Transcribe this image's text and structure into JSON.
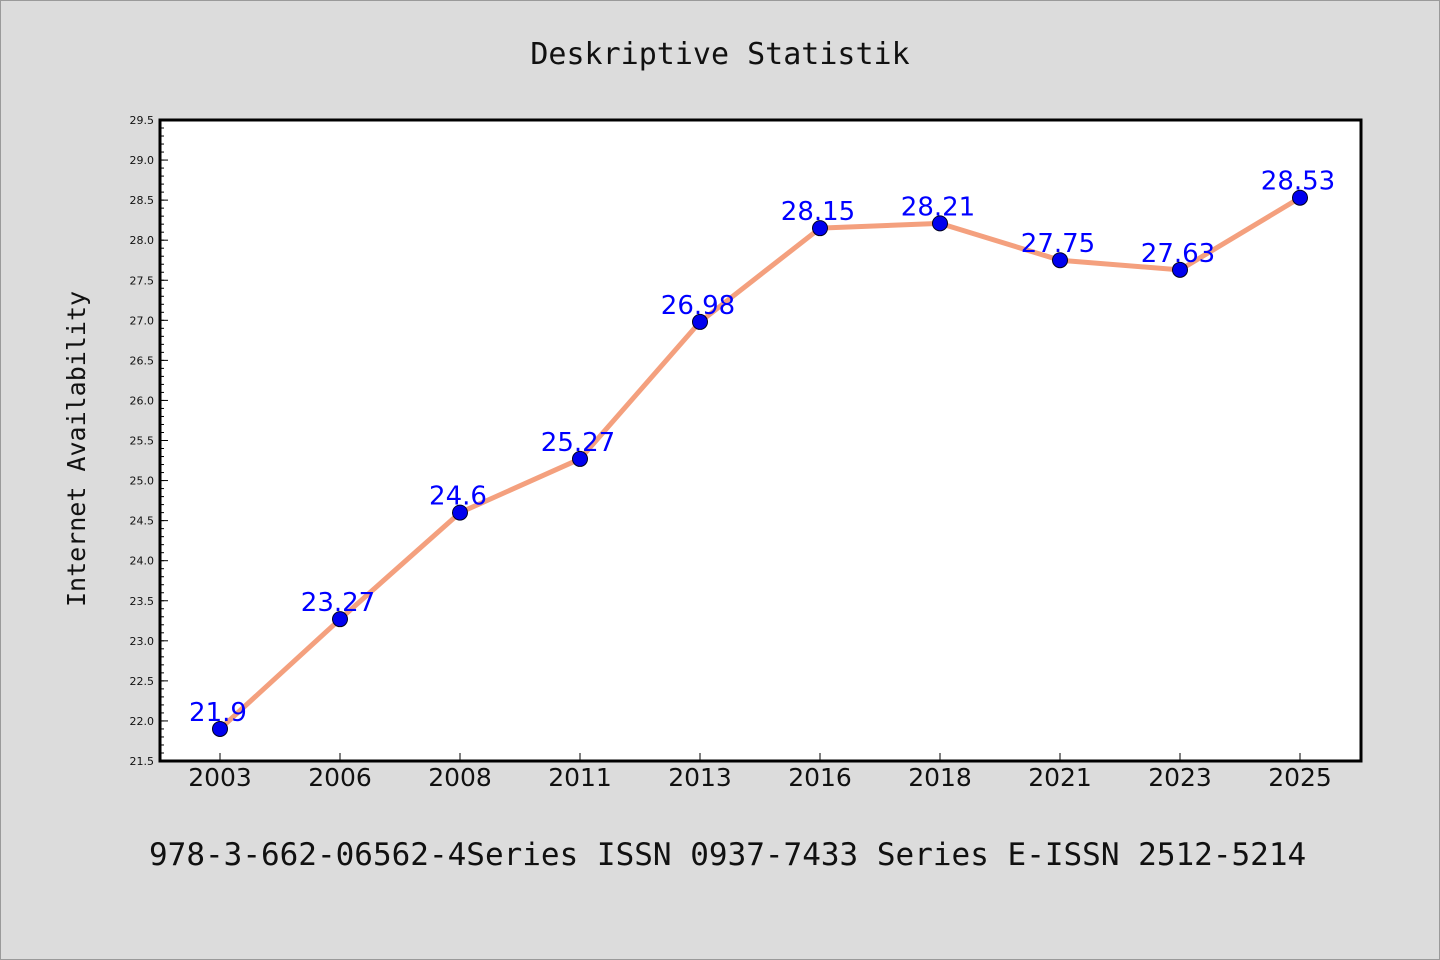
{
  "chart_data": {
    "type": "line",
    "title": "Deskriptive Statistik",
    "xlabel": "",
    "ylabel": "Internet Availability",
    "categories": [
      "2003",
      "2006",
      "2008",
      "2011",
      "2013",
      "2016",
      "2018",
      "2021",
      "2023",
      "2025"
    ],
    "values": [
      21.9,
      23.27,
      24.6,
      25.27,
      26.98,
      28.15,
      28.21,
      27.75,
      27.63,
      28.53
    ],
    "data_labels": [
      "21.9",
      "23.27",
      "24.6",
      "25.27",
      "26.98",
      "28.15",
      "28.21",
      "27.75",
      "27.63",
      "28.53"
    ],
    "ylim": [
      21.5,
      29.5
    ],
    "yticks": [
      "21.5",
      "22.0",
      "22.5",
      "23.0",
      "23.5",
      "24.0",
      "24.5",
      "25.0",
      "25.5",
      "26.0",
      "26.5",
      "27.0",
      "27.5",
      "28.0",
      "28.5",
      "29.0",
      "29.5"
    ],
    "grid": false,
    "legend": "none",
    "line_color": "#f4a07e",
    "marker_color": "#0000ee",
    "label_color": "#0000ff"
  },
  "footer": "978-3-662-06562-4Series ISSN 0937-7433 Series E-ISSN 2512-5214"
}
